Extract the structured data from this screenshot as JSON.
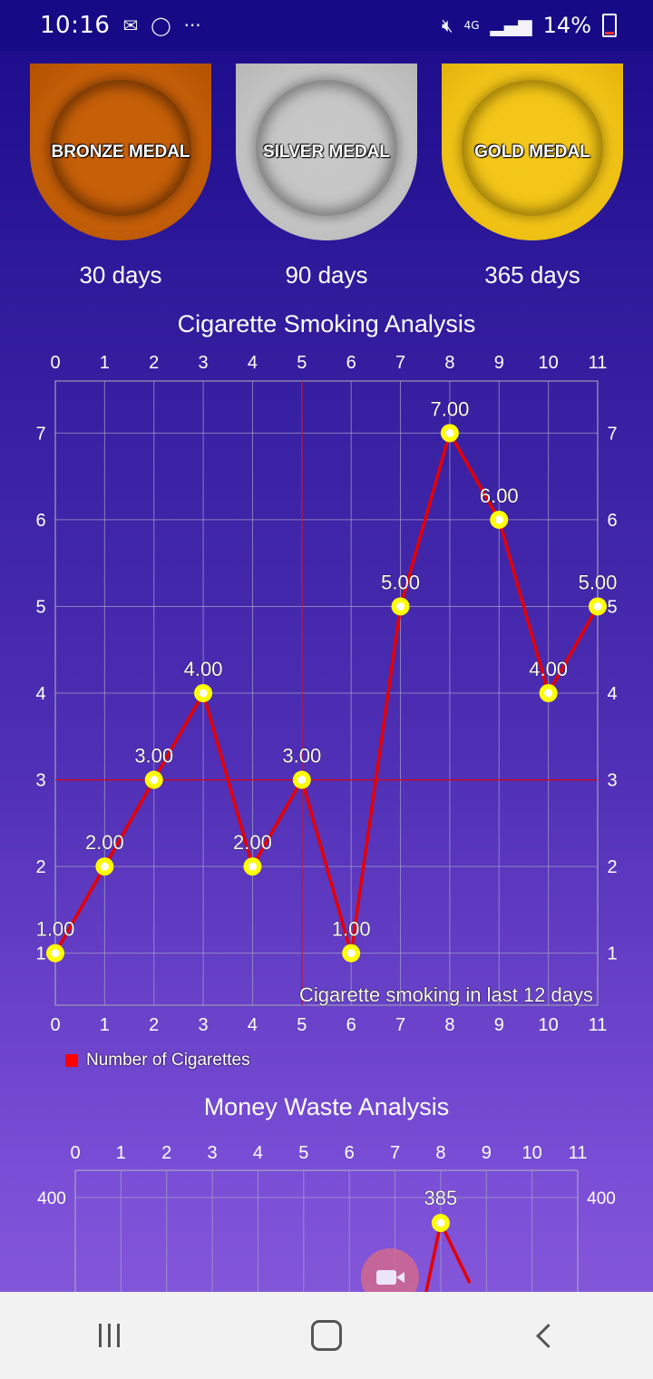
{
  "status_bar": {
    "time": "10:16",
    "left_icons": [
      "gmail-icon",
      "whatsapp-icon",
      "more-icon"
    ],
    "network": "4G",
    "battery": "14%"
  },
  "medals": [
    {
      "name": "BRONZE MEDAL",
      "days": "30 days",
      "color": "#c55f08"
    },
    {
      "name": "SILVER MEDAL",
      "days": "90 days",
      "color": "#c4c4c4"
    },
    {
      "name": "GOLD MEDAL",
      "days": "365 days",
      "color": "#f2c417"
    }
  ],
  "legend": {
    "label": "Number of Cigarettes",
    "color": "#ff0000"
  },
  "chart_data": [
    {
      "type": "line",
      "title": "Cigarette Smoking Analysis",
      "annotation": "Cigarette smoking in last 12 days",
      "x": [
        0,
        1,
        2,
        3,
        4,
        5,
        6,
        7,
        8,
        9,
        10,
        11
      ],
      "series": [
        {
          "name": "Number of Cigarettes",
          "values": [
            1,
            2,
            3,
            4,
            2,
            3,
            1,
            5,
            7,
            6,
            4,
            5
          ]
        }
      ],
      "data_labels": [
        "1.00",
        "2.00",
        "3.00",
        "4.00",
        "2.00",
        "3.00",
        "1.00",
        "5.00",
        "7.00",
        "6.00",
        "4.00",
        "5.00"
      ],
      "x_ticks": [
        "0",
        "1",
        "2",
        "3",
        "4",
        "5",
        "6",
        "7",
        "8",
        "9",
        "10",
        "11"
      ],
      "y_ticks": [
        "1",
        "2",
        "3",
        "4",
        "5",
        "6",
        "7"
      ],
      "ylim": [
        0.4,
        7.6
      ],
      "xlim": [
        0,
        11
      ],
      "grid": true,
      "highlight": {
        "x": 5,
        "y": 3
      },
      "line_color": "#e60000",
      "marker_color": "#ffff00"
    },
    {
      "type": "line",
      "title": "Money Waste Analysis",
      "x_ticks": [
        "0",
        "1",
        "2",
        "3",
        "4",
        "5",
        "6",
        "7",
        "8",
        "9",
        "10",
        "11"
      ],
      "y_ticks": [
        "400"
      ],
      "visible_points": [
        {
          "x": 8,
          "y": 385,
          "label": "385"
        }
      ],
      "grid": true,
      "line_color": "#e60000",
      "marker_color": "#ffff00"
    }
  ],
  "nav": {
    "buttons": [
      "recents-button",
      "home-button",
      "back-button"
    ]
  }
}
